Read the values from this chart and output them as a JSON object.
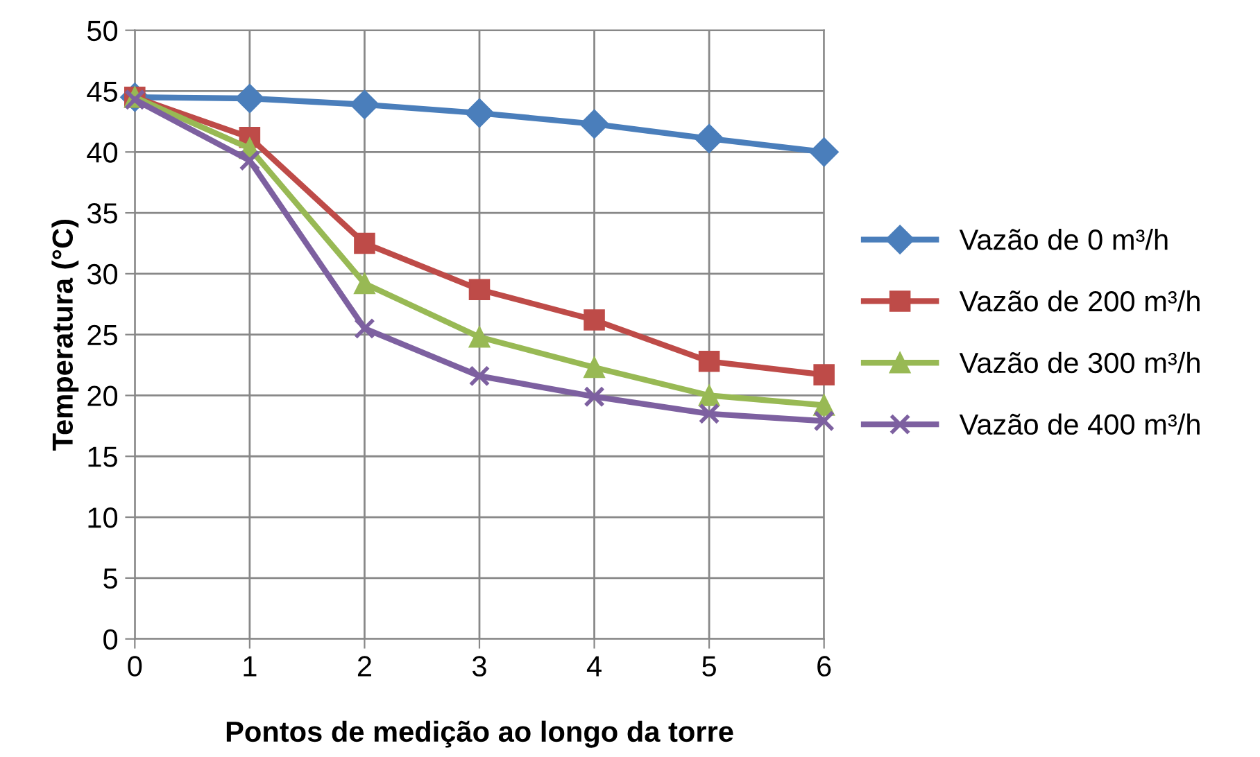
{
  "chart_data": {
    "type": "line",
    "xlabel": "Pontos de medição ao longo da torre",
    "ylabel": "Temperatura (°C)",
    "x": [
      0,
      1,
      2,
      3,
      4,
      5,
      6
    ],
    "xlim": [
      0,
      6
    ],
    "xticks": [
      0,
      1,
      2,
      3,
      4,
      5,
      6
    ],
    "ylim": [
      0,
      50
    ],
    "yticks": [
      0,
      5,
      10,
      15,
      20,
      25,
      30,
      35,
      40,
      45,
      50
    ],
    "grid": true,
    "legend": "right",
    "line_style": "solid",
    "series": [
      {
        "name": "Vazão de 0 m³/h",
        "color": "#4a7ebb",
        "marker": "diamond",
        "values": [
          44.5,
          44.4,
          43.9,
          43.2,
          42.3,
          41.1,
          40.0
        ]
      },
      {
        "name": "Vazão de 200 m³/h",
        "color": "#be4b48",
        "marker": "square",
        "values": [
          44.5,
          41.2,
          32.5,
          28.7,
          26.2,
          22.8,
          21.7
        ]
      },
      {
        "name": "Vazão de 300 m³/h",
        "color": "#98b954",
        "marker": "triangle",
        "values": [
          44.5,
          40.3,
          29.2,
          24.8,
          22.3,
          20.0,
          19.2
        ]
      },
      {
        "name": "Vazão de 400 m³/h",
        "color": "#7d60a0",
        "marker": "cross",
        "values": [
          44.3,
          39.3,
          25.5,
          21.6,
          19.9,
          18.5,
          17.9
        ]
      }
    ]
  }
}
